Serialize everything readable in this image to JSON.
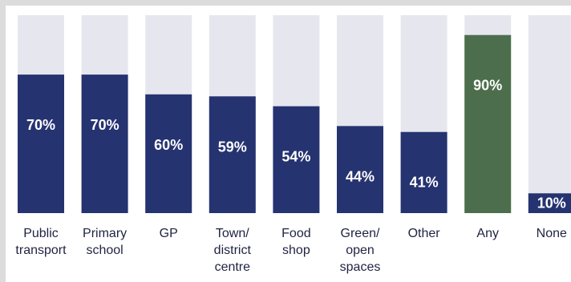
{
  "chart_data": {
    "type": "bar",
    "categories": [
      "Public\ntransport",
      "Primary\nschool",
      "GP",
      "Town/\ndistrict\ncentre",
      "Food\nshop",
      "Green/\nopen\nspaces",
      "Other",
      "Any",
      "None"
    ],
    "values": [
      70,
      70,
      60,
      59,
      54,
      44,
      41,
      90,
      10
    ],
    "data_labels": [
      "70%",
      "70%",
      "60%",
      "59%",
      "54%",
      "44%",
      "41%",
      "90%",
      "10%"
    ],
    "ylim": [
      0,
      100
    ],
    "title": "",
    "xlabel": "",
    "ylabel": "",
    "grid": false,
    "legend": "none"
  },
  "colors": {
    "bar": "#263371",
    "highlight_bar": "#4c6e4c",
    "track": "#e6e7ee",
    "label_text": "#ffffff",
    "category_text": "#1f2340"
  },
  "highlight_index": 7
}
